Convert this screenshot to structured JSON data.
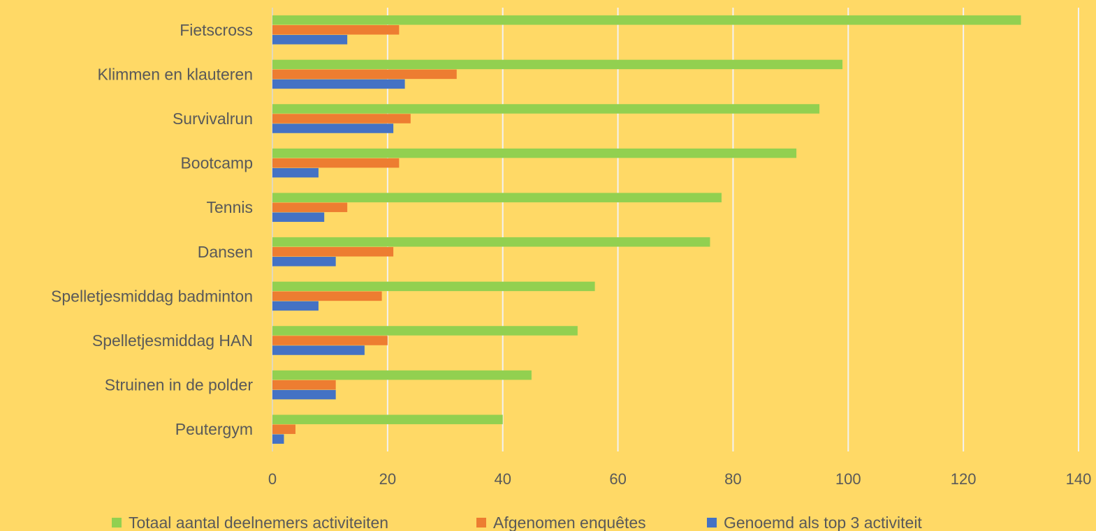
{
  "chart_data": {
    "type": "bar",
    "orientation": "horizontal",
    "title": "",
    "xlabel": "",
    "ylabel": "",
    "categories": [
      "Fietscross",
      "Klimmen en klauteren",
      "Survivalrun",
      "Bootcamp",
      "Tennis",
      "Dansen",
      "Spelletjesmiddag badminton",
      "Spelletjesmiddag HAN",
      "Struinen in de polder",
      "Peutergym"
    ],
    "series": [
      {
        "name": "Totaal aantal deelnemers activiteiten",
        "color": "#92D050",
        "values": [
          130,
          99,
          95,
          91,
          78,
          76,
          56,
          53,
          45,
          40
        ]
      },
      {
        "name": "Afgenomen enquêtes",
        "color": "#ED7D31",
        "values": [
          22,
          32,
          24,
          22,
          13,
          21,
          19,
          20,
          11,
          4
        ]
      },
      {
        "name": "Genoemd als top 3 activiteit",
        "color": "#4472C4",
        "values": [
          13,
          23,
          21,
          8,
          9,
          11,
          8,
          16,
          11,
          2
        ]
      }
    ],
    "xlim": [
      0,
      140
    ],
    "xticks": [
      "0",
      "20",
      "40",
      "60",
      "80",
      "100",
      "120",
      "140"
    ],
    "grid": true,
    "legend_position": "bottom"
  }
}
